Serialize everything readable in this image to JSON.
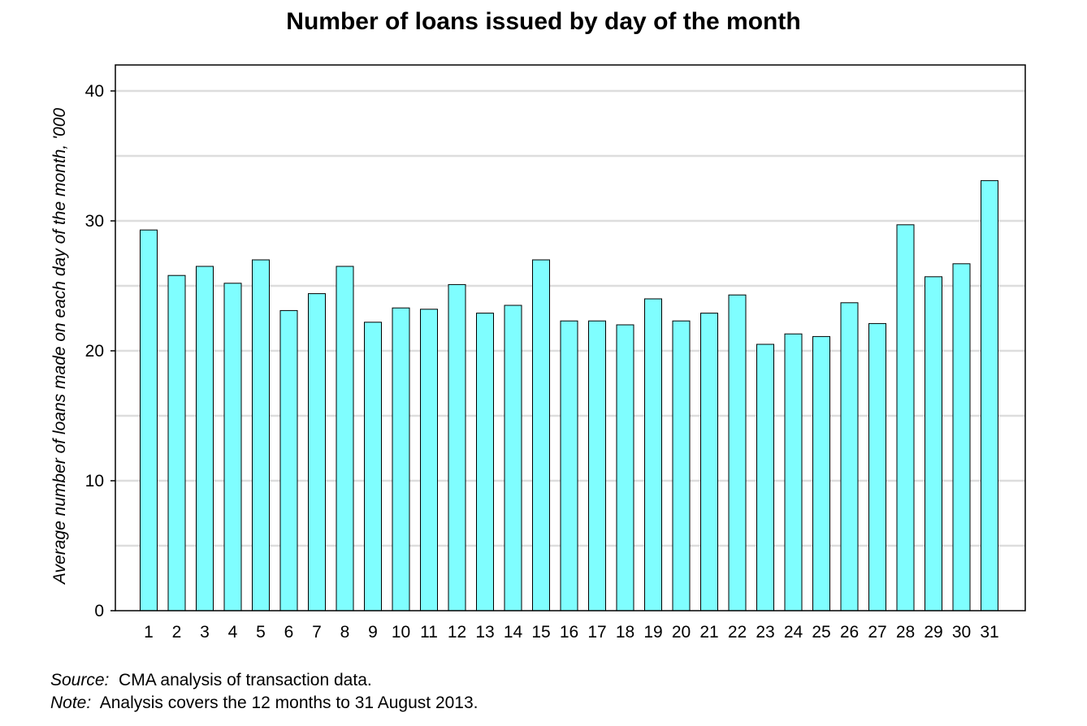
{
  "chart_data": {
    "type": "bar",
    "title": "Number of loans issued by day of the month",
    "xlabel": "",
    "ylabel": "Average number of loans made on each day of the month, '000",
    "ylim": [
      0,
      42
    ],
    "yticks": [
      0,
      10,
      20,
      30,
      40
    ],
    "grid": true,
    "categories": [
      "1",
      "2",
      "3",
      "4",
      "5",
      "6",
      "7",
      "8",
      "9",
      "10",
      "11",
      "12",
      "13",
      "14",
      "15",
      "16",
      "17",
      "18",
      "19",
      "20",
      "21",
      "22",
      "23",
      "24",
      "25",
      "26",
      "27",
      "28",
      "29",
      "30",
      "31"
    ],
    "values": [
      29.3,
      25.8,
      26.5,
      25.2,
      27.0,
      23.1,
      24.4,
      26.5,
      22.2,
      23.3,
      23.2,
      25.1,
      22.9,
      23.5,
      27.0,
      22.3,
      22.3,
      22.0,
      24.0,
      22.3,
      22.9,
      24.3,
      20.5,
      21.3,
      21.1,
      23.7,
      22.1,
      29.7,
      25.7,
      26.7,
      33.1
    ],
    "bar_color": "#7ffeff",
    "bar_edge_color": "#000000",
    "grid_color": "#dddddd"
  },
  "notes": {
    "source_label": "Source:",
    "source_text": "CMA analysis of transaction data.",
    "note_label": "Note:",
    "note_text": "Analysis covers the 12 months to 31 August 2013."
  }
}
